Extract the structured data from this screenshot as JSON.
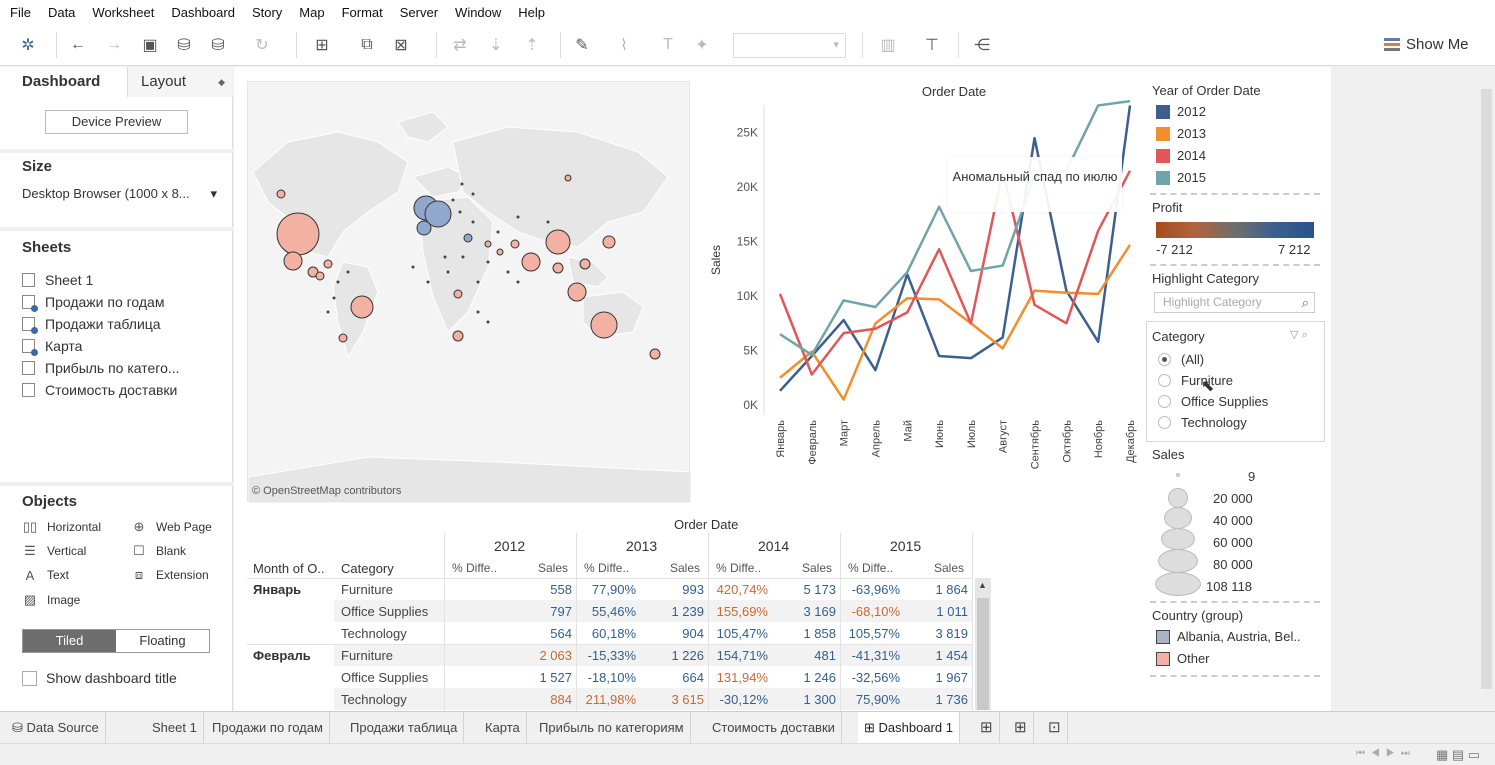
{
  "menu": [
    "File",
    "Data",
    "Worksheet",
    "Dashboard",
    "Story",
    "Map",
    "Format",
    "Server",
    "Window",
    "Help"
  ],
  "toolbar": {
    "show_me": "Show Me"
  },
  "left_panel": {
    "tab_dashboard": "Dashboard",
    "tab_layout": "Layout",
    "device_preview": "Device Preview",
    "size_title": "Size",
    "size_value": "Desktop Browser (1000 x 8...",
    "sheets_title": "Sheets",
    "sheets": [
      "Sheet 1",
      "Продажи по годам",
      "Продажи таблица",
      "Карта",
      "Прибыль по катего...",
      "Стоимость доставки"
    ],
    "objects_title": "Objects",
    "objects": [
      "Horizontal",
      "Web Page",
      "Vertical",
      "Blank",
      "Text",
      "Extension",
      "Image"
    ],
    "tiled": "Tiled",
    "floating": "Floating",
    "show_title": "Show dashboard title"
  },
  "map": {
    "attribution": "© OpenStreetMap contributors"
  },
  "line_chart": {
    "annotation": "Аномальный спад по июлю"
  },
  "chart_data": {
    "type": "line",
    "title": "Order Date",
    "ylabel": "Sales",
    "xlabel": "",
    "categories": [
      "Январь",
      "Февраль",
      "Март",
      "Апрель",
      "Май",
      "Июнь",
      "Июль",
      "Август",
      "Сентябрь",
      "Октябрь",
      "Ноябрь",
      "Декабрь"
    ],
    "yticks": [
      "0K",
      "5K",
      "10K",
      "15K",
      "20K",
      "25K"
    ],
    "ylim": [
      0,
      28000
    ],
    "series": [
      {
        "name": "2012",
        "color": "#3e5f8e",
        "values": [
          1300,
          4500,
          7800,
          3200,
          12000,
          4500,
          4300,
          6200,
          24500,
          10500,
          5800,
          27500
        ]
      },
      {
        "name": "2013",
        "color": "#f28e2b",
        "values": [
          2500,
          4900,
          500,
          7500,
          9800,
          9700,
          7500,
          5200,
          10500,
          10300,
          10200,
          14700
        ]
      },
      {
        "name": "2014",
        "color": "#e15759",
        "values": [
          10200,
          2800,
          6600,
          7000,
          8500,
          14300,
          7500,
          21500,
          9200,
          7500,
          16000,
          21500
        ]
      },
      {
        "name": "2015",
        "color": "#6fa4a8",
        "values": [
          6500,
          4600,
          9600,
          9000,
          12200,
          18200,
          12300,
          12800,
          21000,
          21500,
          27500,
          27900
        ]
      }
    ]
  },
  "legends": {
    "year_title": "Year of Order Date",
    "years": [
      {
        "label": "2012",
        "color": "#3e5f8e"
      },
      {
        "label": "2013",
        "color": "#f28e2b"
      },
      {
        "label": "2014",
        "color": "#e15759"
      },
      {
        "label": "2015",
        "color": "#6fa4a8"
      }
    ],
    "profit_title": "Profit",
    "profit_min": "-7 212",
    "profit_max": "7 212",
    "highlight_title": "Highlight Category",
    "highlight_placeholder": "Highlight Category",
    "category_title": "Category",
    "categories": [
      "(All)",
      "Furniture",
      "Office Supplies",
      "Technology"
    ],
    "sales_title": "Sales",
    "sales_sizes": [
      "9",
      "20 000",
      "40 000",
      "60 000",
      "80 000",
      "108 118"
    ],
    "country_title": "Country (group)",
    "countries": [
      {
        "label": "Albania, Austria, Bel..",
        "color": "#a9b3c5"
      },
      {
        "label": "Other",
        "color": "#f2b1a3"
      }
    ]
  },
  "table": {
    "title": "Order Date",
    "years": [
      "2012",
      "2013",
      "2014",
      "2015"
    ],
    "month_header": "Month of O..",
    "category_header": "Category",
    "diff_header": "% Diffe..",
    "sales_header": "Sales",
    "rows": [
      {
        "month": "Январь",
        "cat": "Furniture",
        "v": [
          "558",
          "77,90%",
          "993",
          "420,74%",
          "5 173",
          "-63,96%",
          "1 864"
        ]
      },
      {
        "month": "",
        "cat": "Office Supplies",
        "v": [
          "797",
          "55,46%",
          "1 239",
          "155,69%",
          "3 169",
          "-68,10%",
          "1 011"
        ]
      },
      {
        "month": "",
        "cat": "Technology",
        "v": [
          "564",
          "60,18%",
          "904",
          "105,47%",
          "1 858",
          "105,57%",
          "3 819"
        ]
      },
      {
        "month": "Февраль",
        "cat": "Furniture",
        "v": [
          "2 063",
          "-15,33%",
          "1 226",
          "154,71%",
          "481",
          "-41,31%",
          "1 454"
        ]
      },
      {
        "month": "",
        "cat": "Office Supplies",
        "v": [
          "1 527",
          "-18,10%",
          "664",
          "131,94%",
          "1 246",
          "-32,56%",
          "1 967"
        ]
      },
      {
        "month": "",
        "cat": "Technology",
        "v": [
          "884",
          "211,98%",
          "3 615",
          "-30,12%",
          "1 300",
          "75,90%",
          "1 736"
        ]
      }
    ]
  },
  "bottom_tabs": [
    "Data Source",
    "Sheet 1",
    "Продажи по годам",
    "Продажи таблица",
    "Карта",
    "Прибыль по категориям",
    "Стоимость доставки",
    "Dashboard 1"
  ]
}
